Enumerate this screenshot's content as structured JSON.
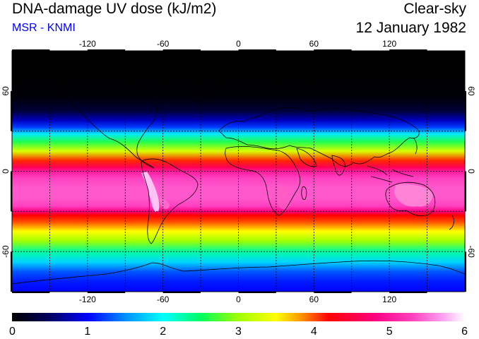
{
  "header": {
    "title": "DNA-damage UV dose (kJ/m2)",
    "subtitle": "MSR - KNMI",
    "mode": "Clear-sky",
    "date": "12 January 1982"
  },
  "map": {
    "lon_ticks": [
      "-120",
      "-60",
      "0",
      "60",
      "120"
    ],
    "lon_tick_values": [
      -120,
      -60,
      0,
      60,
      120
    ],
    "lat_ticks": [
      "60",
      "0",
      "-60"
    ],
    "lat_tick_values": [
      60,
      0,
      -60
    ],
    "lon_range": [
      -180,
      180
    ],
    "lat_range": [
      -90,
      90
    ],
    "dose_profile": {
      "latitudes": [
        90,
        70,
        55,
        45,
        38,
        33,
        28,
        22,
        15,
        8,
        3,
        0,
        -5,
        -12,
        -20,
        -26,
        -30,
        -33,
        -38,
        -45,
        -52,
        -60,
        -68,
        -75,
        -82,
        -90
      ],
      "dose_values": [
        0.0,
        0.0,
        0.05,
        0.3,
        0.8,
        1.2,
        1.9,
        2.6,
        3.3,
        4.1,
        4.6,
        5.0,
        5.3,
        5.4,
        5.4,
        5.3,
        4.8,
        4.2,
        4.0,
        3.5,
        3.0,
        2.3,
        1.8,
        1.3,
        1.1,
        1.0
      ]
    }
  },
  "colorbar": {
    "labels": [
      "0",
      "1",
      "2",
      "3",
      "4",
      "5",
      "6"
    ],
    "min": 0,
    "max": 6,
    "stops": [
      {
        "value": 0.0,
        "color": "#000000"
      },
      {
        "value": 0.5,
        "color": "#000060"
      },
      {
        "value": 1.0,
        "color": "#0000ff"
      },
      {
        "value": 1.5,
        "color": "#0090ff"
      },
      {
        "value": 2.0,
        "color": "#00ffff"
      },
      {
        "value": 2.5,
        "color": "#00ff60"
      },
      {
        "value": 3.0,
        "color": "#a0ff00"
      },
      {
        "value": 3.5,
        "color": "#ffff00"
      },
      {
        "value": 3.8,
        "color": "#ffa000"
      },
      {
        "value": 4.2,
        "color": "#ff0000"
      },
      {
        "value": 4.8,
        "color": "#ff0080"
      },
      {
        "value": 5.3,
        "color": "#ff40c0"
      },
      {
        "value": 5.7,
        "color": "#ffa0f0"
      },
      {
        "value": 6.0,
        "color": "#ffffff"
      }
    ]
  }
}
